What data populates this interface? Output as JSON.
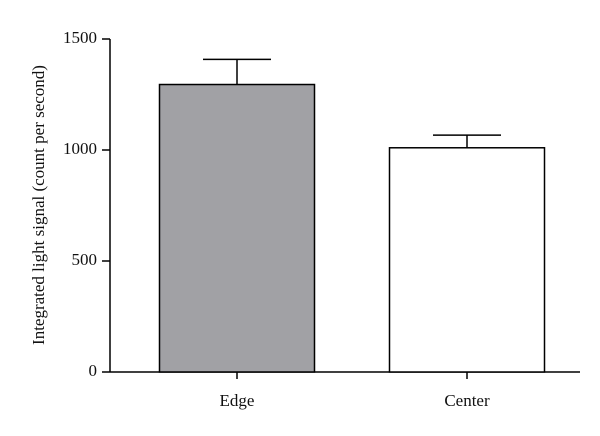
{
  "chart_data": {
    "type": "bar",
    "y_label": "Integrated light signal (count per second)",
    "categories": [
      "Edge",
      "Center"
    ],
    "values": [
      1295,
      1010
    ],
    "errors": [
      113,
      57
    ],
    "colors": [
      "#a1a1a5",
      "#ffffff"
    ],
    "ylim": [
      0,
      1500
    ],
    "yticks": [
      0,
      500,
      1000,
      1500
    ],
    "grid": false
  }
}
